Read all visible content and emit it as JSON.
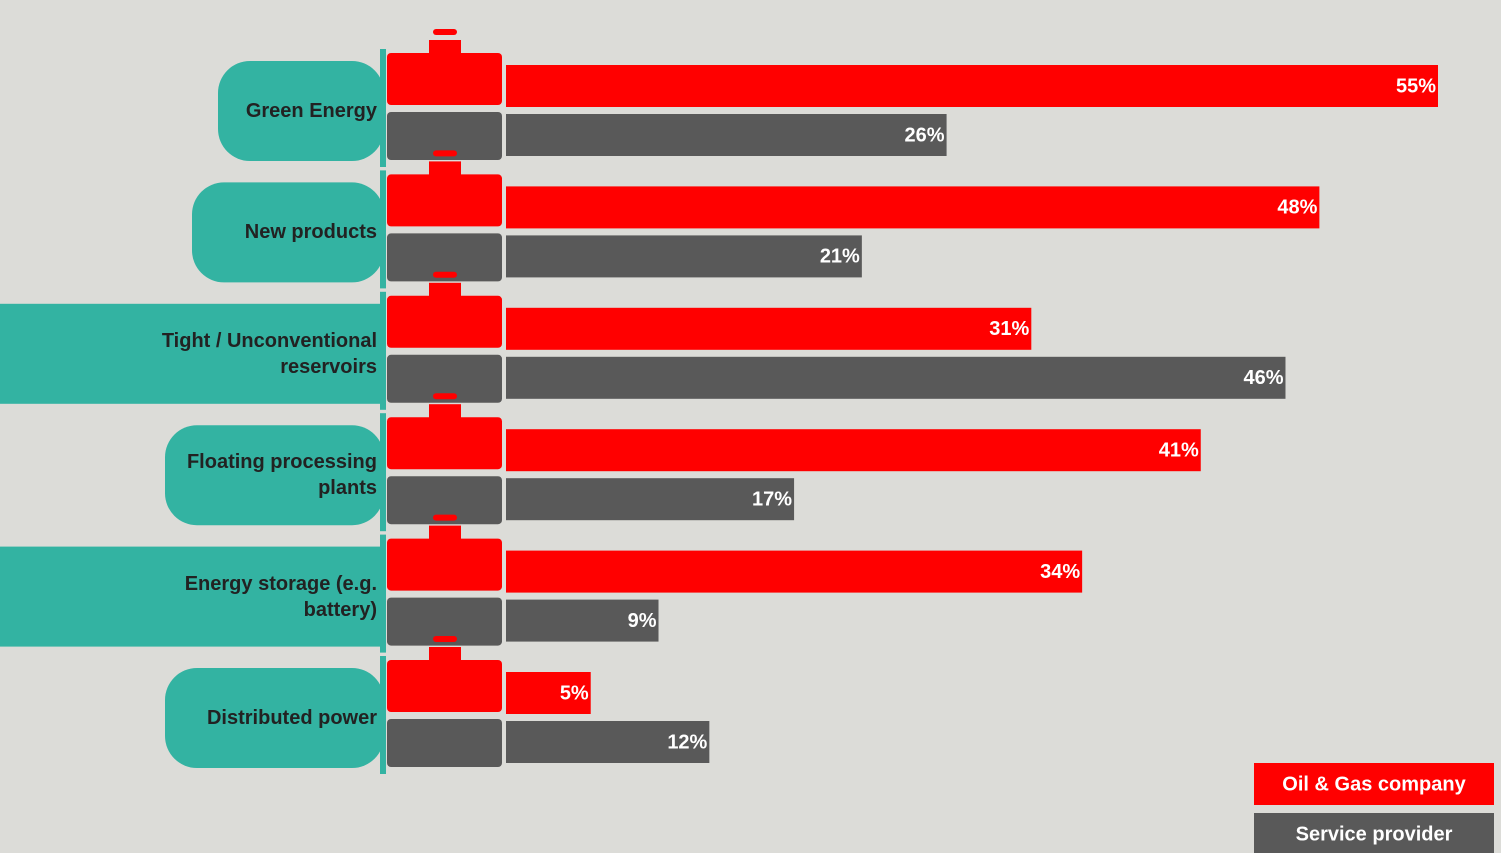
{
  "chart_data": {
    "type": "bar",
    "orientation": "horizontal",
    "categories": [
      "Green Energy",
      "New products",
      "Tight / Unconventional reservoirs",
      "Floating processing plants",
      "Energy storage (e.g. battery)",
      "Distributed power"
    ],
    "series": [
      {
        "name": "Oil & Gas company",
        "color": "#ff0000",
        "values": [
          55,
          48,
          31,
          41,
          34,
          5
        ],
        "value_labels": [
          "55%",
          "48%",
          "31%",
          "41%",
          "34%",
          "5%"
        ]
      },
      {
        "name": "Service provider",
        "color": "#595959",
        "values": [
          26,
          21,
          46,
          17,
          9,
          12
        ],
        "value_labels": [
          "26%",
          "21%",
          "46%",
          "17%",
          "9%",
          "12%"
        ]
      }
    ]
  }
}
